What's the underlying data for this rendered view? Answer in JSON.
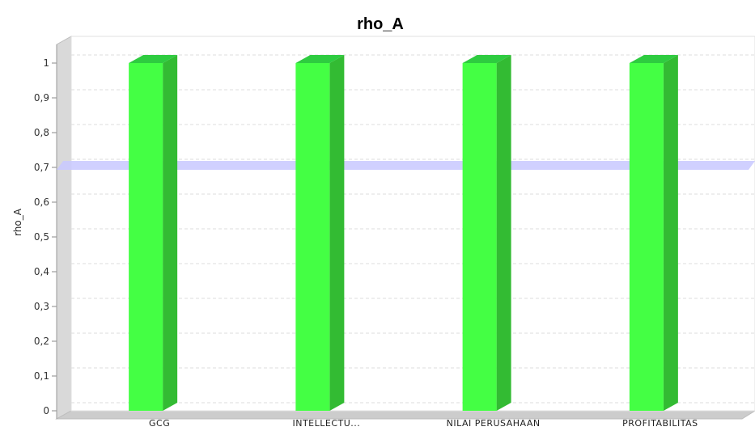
{
  "chart_data": {
    "type": "bar",
    "title": "rho_A",
    "xlabel": "",
    "ylabel": "rho_A",
    "categories": [
      "GCG",
      "INTELLECTU...",
      "NILAI PERUSAHAAN",
      "PROFITABILITAS"
    ],
    "values": [
      1,
      1,
      1,
      1
    ],
    "ylim": [
      0,
      1
    ],
    "yticks": [
      "0",
      "0,1",
      "0,2",
      "0,3",
      "0,4",
      "0,5",
      "0,6",
      "0,7",
      "0,8",
      "0,9",
      "1"
    ],
    "reference_line": {
      "value": 0.7,
      "color": "#c8c8ff"
    },
    "grid": true,
    "colors": {
      "bar_front": "#44ff44",
      "bar_side": "#33bb33",
      "bar_top": "#2ecc40"
    }
  }
}
